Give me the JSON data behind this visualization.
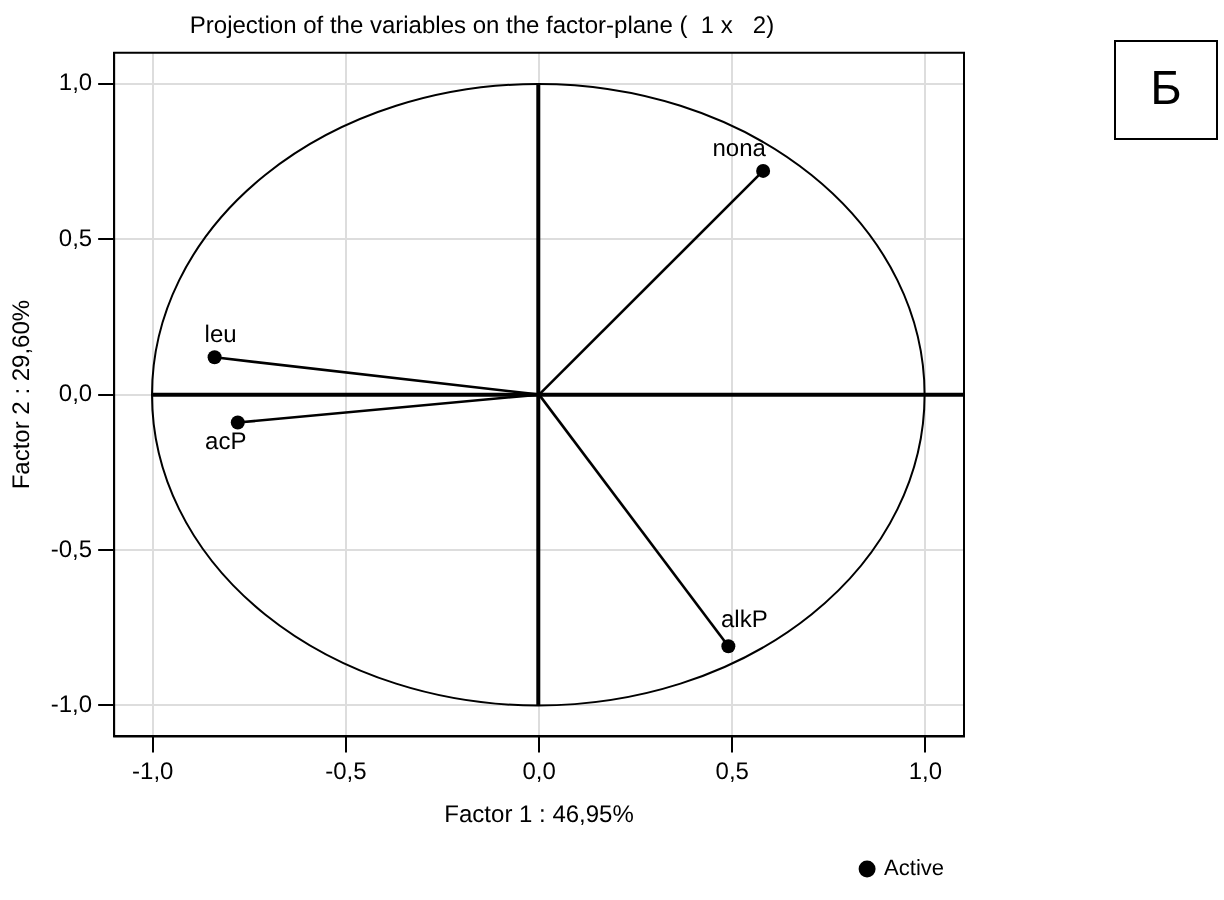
{
  "chart_data": {
    "type": "scatter",
    "title": "Projection of the variables on the factor-plane (  1 x   2)",
    "xlabel": "Factor 1 : 46,95%",
    "ylabel": "Factor 2 : 29,60%",
    "xlim": [
      -1.1,
      1.1
    ],
    "ylim": [
      -1.1,
      1.1
    ],
    "xticks": [
      {
        "value": -1,
        "label": "-1,0"
      },
      {
        "value": -0.5,
        "label": "-0,5"
      },
      {
        "value": 0,
        "label": "0,0"
      },
      {
        "value": 0.5,
        "label": "0,5"
      },
      {
        "value": 1,
        "label": "1,0"
      }
    ],
    "yticks": [
      {
        "value": -1,
        "label": "-1,0"
      },
      {
        "value": -0.5,
        "label": "-0,5"
      },
      {
        "value": 0,
        "label": "0,0"
      },
      {
        "value": 0.5,
        "label": "0,5"
      },
      {
        "value": 1,
        "label": "1,0"
      }
    ],
    "grid": true,
    "legend": "bottom right",
    "series": [
      {
        "type": "line",
        "color": "#000000",
        "marker": "none",
        "x": [
          0,
          0.58
        ],
        "values": [
          0,
          0.72
        ]
      },
      {
        "type": "line",
        "color": "#000000",
        "marker": "none",
        "x": [
          0,
          -0.84
        ],
        "values": [
          0,
          0.12
        ]
      },
      {
        "type": "line",
        "color": "#000000",
        "marker": "none",
        "x": [
          0,
          -0.78
        ],
        "values": [
          0,
          -0.09
        ]
      },
      {
        "type": "line",
        "color": "#000000",
        "marker": "none",
        "x": [
          0,
          0.49
        ],
        "values": [
          0,
          -0.81
        ]
      },
      {
        "type": "scatter",
        "name": "Active",
        "color": "#000000",
        "marker": "circle",
        "x": [
          0.58,
          -0.84,
          -0.78,
          0.49
        ],
        "values": [
          0.72,
          0.12,
          -0.09,
          -0.81
        ]
      }
    ],
    "annotations": [
      {
        "text": "nona",
        "x": 0.58,
        "y": 0.72
      },
      {
        "text": "leu",
        "x": -0.84,
        "y": 0.12
      },
      {
        "text": "acP",
        "x": -0.78,
        "y": -0.09
      },
      {
        "text": "alkP",
        "x": 0.49,
        "y": -0.81
      },
      "Б"
    ]
  }
}
